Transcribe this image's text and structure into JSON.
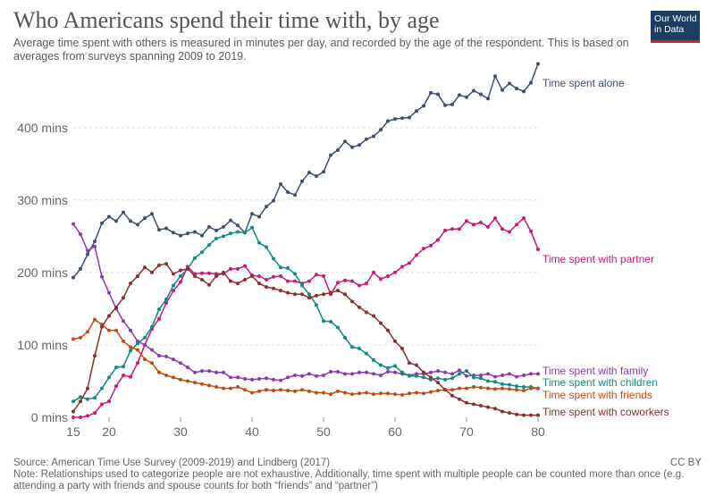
{
  "header": {
    "title": "Who Americans spend their time with, by age",
    "subtitle": "Average time spent with others is measured in minutes per day, and recorded by the age of the respondent. This is based on averages from surveys spanning 2009 to 2019."
  },
  "logo": {
    "line1": "Our World",
    "line2": "in Data",
    "background": "#1d3d63",
    "accent": "#ce261e"
  },
  "footer": {
    "source": "Source: American Time Use Survey (2009-2019) and Lindberg (2017)",
    "license": "CC BY",
    "note": "Note: Relationships used to categorize people are not exhaustive. Additionally, time spent with multiple people can be counted more than once (e.g. attending a party with friends and spouse counts for both “friends” and “partner”)"
  },
  "chart_data": {
    "type": "line",
    "x": [
      15,
      16,
      17,
      18,
      19,
      20,
      21,
      22,
      23,
      24,
      25,
      26,
      27,
      28,
      29,
      30,
      31,
      32,
      33,
      34,
      35,
      36,
      37,
      38,
      39,
      40,
      41,
      42,
      43,
      44,
      45,
      46,
      47,
      48,
      49,
      50,
      51,
      52,
      53,
      54,
      55,
      56,
      57,
      58,
      59,
      60,
      61,
      62,
      63,
      64,
      65,
      66,
      67,
      68,
      69,
      70,
      71,
      72,
      73,
      74,
      75,
      76,
      77,
      78,
      79,
      80
    ],
    "x_ticks": [
      15,
      20,
      30,
      40,
      50,
      60,
      70,
      80
    ],
    "x_tick_labels": [
      "15",
      "20",
      "30",
      "40",
      "50",
      "60",
      "70",
      "80"
    ],
    "y_ticks": [
      0,
      100,
      200,
      300,
      400
    ],
    "y_tick_labels": [
      "0 mins",
      "100 mins",
      "200 mins",
      "300 mins",
      "400 mins"
    ],
    "xlim": [
      15,
      80
    ],
    "ylim": [
      0,
      480
    ],
    "grid": "horizontal dashed",
    "legend": "line-end labels",
    "series": [
      {
        "name": "Time spent alone",
        "color": "#3f4f6e",
        "values": [
          193,
          205,
          225,
          243,
          268,
          277,
          271,
          283,
          271,
          266,
          275,
          281,
          259,
          261,
          255,
          251,
          254,
          256,
          251,
          263,
          258,
          263,
          272,
          265,
          255,
          281,
          277,
          291,
          299,
          322,
          311,
          307,
          326,
          338,
          333,
          339,
          362,
          369,
          381,
          373,
          376,
          384,
          388,
          397,
          409,
          412,
          413,
          414,
          423,
          430,
          448,
          446,
          431,
          432,
          445,
          442,
          451,
          446,
          440,
          471,
          452,
          461,
          454,
          450,
          462,
          488
        ]
      },
      {
        "name": "Time spent with partner",
        "color": "#c8197b",
        "values": [
          0,
          0,
          2,
          6,
          18,
          22,
          43,
          58,
          56,
          75,
          100,
          122,
          136,
          158,
          175,
          187,
          208,
          198,
          199,
          199,
          198,
          198,
          205,
          205,
          209,
          196,
          195,
          190,
          194,
          195,
          188,
          188,
          185,
          188,
          197,
          195,
          170,
          186,
          189,
          188,
          182,
          185,
          200,
          191,
          195,
          200,
          208,
          213,
          224,
          233,
          237,
          245,
          258,
          260,
          260,
          271,
          266,
          269,
          263,
          275,
          260,
          256,
          266,
          275,
          257,
          232
        ]
      },
      {
        "name": "Time spent with family",
        "color": "#8b3ab5",
        "values": [
          267,
          253,
          230,
          236,
          194,
          172,
          150,
          133,
          120,
          105,
          100,
          93,
          85,
          84,
          80,
          75,
          69,
          62,
          64,
          64,
          62,
          62,
          55,
          55,
          53,
          52,
          53,
          54,
          52,
          51,
          55,
          58,
          57,
          60,
          57,
          58,
          63,
          63,
          60,
          60,
          62,
          62,
          60,
          58,
          63,
          62,
          60,
          58,
          60,
          60,
          62,
          64,
          62,
          60,
          65,
          57,
          58,
          58,
          60,
          56,
          58,
          60,
          56,
          58,
          60,
          60
        ]
      },
      {
        "name": "Time spent with children",
        "color": "#0f8a84",
        "values": [
          22,
          28,
          25,
          27,
          40,
          55,
          69,
          70,
          92,
          102,
          110,
          125,
          149,
          163,
          182,
          195,
          205,
          220,
          228,
          238,
          247,
          250,
          254,
          256,
          255,
          262,
          241,
          235,
          219,
          207,
          206,
          198,
          182,
          170,
          155,
          133,
          132,
          124,
          110,
          97,
          95,
          88,
          79,
          72,
          68,
          71,
          62,
          57,
          57,
          55,
          52,
          54,
          52,
          54,
          60,
          64,
          55,
          54,
          50,
          49,
          46,
          45,
          43,
          42,
          42,
          40
        ]
      },
      {
        "name": "Time spent with friends",
        "color": "#bf4d12",
        "values": [
          108,
          110,
          118,
          135,
          128,
          120,
          120,
          105,
          97,
          93,
          80,
          75,
          62,
          58,
          55,
          52,
          50,
          48,
          46,
          44,
          42,
          40,
          40,
          42,
          38,
          34,
          36,
          38,
          37,
          38,
          37,
          36,
          38,
          36,
          34,
          34,
          32,
          36,
          34,
          32,
          33,
          34,
          32,
          33,
          33,
          32,
          31,
          33,
          34,
          33,
          35,
          37,
          38,
          38,
          40,
          40,
          42,
          41,
          40,
          39,
          40,
          39,
          38,
          37,
          40,
          40
        ]
      },
      {
        "name": "Time spent with coworkers",
        "color": "#8a3030",
        "values": [
          8,
          22,
          40,
          85,
          125,
          140,
          152,
          165,
          185,
          195,
          207,
          200,
          210,
          212,
          198,
          203,
          205,
          195,
          190,
          183,
          195,
          200,
          188,
          185,
          190,
          195,
          185,
          180,
          178,
          175,
          172,
          170,
          170,
          165,
          168,
          170,
          172,
          175,
          170,
          160,
          152,
          145,
          140,
          130,
          120,
          105,
          95,
          75,
          72,
          62,
          55,
          48,
          38,
          30,
          25,
          20,
          18,
          16,
          14,
          12,
          8,
          6,
          4,
          3,
          3,
          3
        ]
      }
    ]
  }
}
